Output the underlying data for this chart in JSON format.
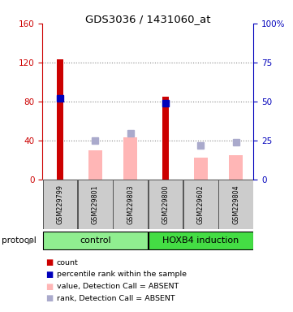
{
  "title": "GDS3036 / 1431060_at",
  "samples": [
    "GSM229799",
    "GSM229801",
    "GSM229803",
    "GSM229800",
    "GSM229602",
    "GSM229804"
  ],
  "red_bars": [
    123,
    0,
    0,
    85,
    0,
    0
  ],
  "blue_squares": [
    83,
    0,
    0,
    78,
    0,
    0
  ],
  "pink_bars": [
    0,
    30,
    43,
    0,
    22,
    25
  ],
  "lightblue_squares": [
    0,
    40,
    47,
    0,
    35,
    38
  ],
  "groups": [
    {
      "label": "control",
      "indices": [
        0,
        1,
        2
      ],
      "color": "#90EE90"
    },
    {
      "label": "HOXB4 induction",
      "indices": [
        3,
        4,
        5
      ],
      "color": "#44DD44"
    }
  ],
  "ylim": [
    0,
    160
  ],
  "yticks_left": [
    0,
    40,
    80,
    120,
    160
  ],
  "yticks_right_labels": [
    "0",
    "25",
    "50",
    "75",
    "100%"
  ],
  "yticks_right_vals": [
    0,
    40,
    80,
    120,
    160
  ],
  "left_axis_color": "#CC0000",
  "right_axis_color": "#0000BB",
  "red_bar_color": "#CC0000",
  "pink_bar_color": "#FFB6B6",
  "blue_sq_color": "#0000BB",
  "lightblue_sq_color": "#AAAACC",
  "grid_color": "#888888",
  "bg_color": "#FFFFFF",
  "label_bg_color": "#CCCCCC",
  "protocol_label": "protocol",
  "legend_items": [
    {
      "color": "#CC0000",
      "label": "count"
    },
    {
      "color": "#0000BB",
      "label": "percentile rank within the sample"
    },
    {
      "color": "#FFB6B6",
      "label": "value, Detection Call = ABSENT"
    },
    {
      "color": "#AAAACC",
      "label": "rank, Detection Call = ABSENT"
    }
  ]
}
